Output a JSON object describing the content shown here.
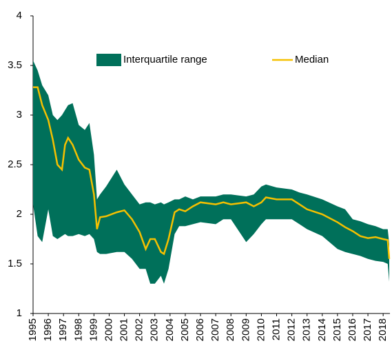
{
  "chart_data": {
    "type": "band-line",
    "x": [
      1995.0,
      1995.3,
      1995.6,
      1996.0,
      1996.3,
      1996.6,
      1996.9,
      1997.1,
      1997.3,
      1997.6,
      1998.0,
      1998.4,
      1998.7,
      1999.0,
      1999.2,
      1999.4,
      1999.8,
      2000.5,
      2001.0,
      2001.5,
      2002.0,
      2002.4,
      2002.7,
      2003.0,
      2003.4,
      2003.6,
      2003.9,
      2004.3,
      2004.6,
      2005.0,
      2005.5,
      2006.0,
      2007.0,
      2007.5,
      2008.0,
      2009.0,
      2009.5,
      2010.0,
      2010.3,
      2011.0,
      2012.0,
      2012.5,
      2013.0,
      2014.0,
      2015.0,
      2015.5,
      2016.0,
      2016.5,
      2017.0,
      2017.5,
      2018.0,
      2018.3,
      2018.4
    ],
    "series": [
      {
        "name": "Interquartile range",
        "color": "#00705a",
        "high": [
          3.55,
          3.45,
          3.3,
          3.2,
          3.0,
          2.95,
          3.0,
          3.05,
          3.1,
          3.12,
          2.9,
          2.85,
          2.92,
          2.6,
          2.15,
          2.2,
          2.28,
          2.45,
          2.3,
          2.2,
          2.1,
          2.12,
          2.12,
          2.1,
          2.12,
          2.1,
          2.12,
          2.15,
          2.15,
          2.18,
          2.15,
          2.18,
          2.18,
          2.2,
          2.2,
          2.18,
          2.2,
          2.28,
          2.3,
          2.27,
          2.25,
          2.22,
          2.2,
          2.15,
          2.08,
          2.05,
          1.95,
          1.93,
          1.9,
          1.88,
          1.85,
          1.85,
          1.7
        ],
        "low": [
          2.1,
          1.78,
          1.72,
          2.05,
          1.78,
          1.75,
          1.78,
          1.8,
          1.78,
          1.78,
          1.8,
          1.78,
          1.8,
          1.75,
          1.62,
          1.6,
          1.6,
          1.62,
          1.62,
          1.55,
          1.45,
          1.45,
          1.3,
          1.3,
          1.38,
          1.3,
          1.45,
          1.8,
          1.88,
          1.88,
          1.9,
          1.92,
          1.9,
          1.95,
          1.95,
          1.72,
          1.8,
          1.9,
          1.95,
          1.95,
          1.95,
          1.9,
          1.85,
          1.78,
          1.65,
          1.62,
          1.6,
          1.58,
          1.55,
          1.53,
          1.52,
          1.5,
          1.32
        ]
      },
      {
        "name": "Median",
        "color": "#f5c000",
        "values": [
          3.28,
          3.28,
          3.1,
          2.95,
          2.75,
          2.5,
          2.45,
          2.7,
          2.77,
          2.7,
          2.55,
          2.47,
          2.45,
          2.2,
          1.85,
          1.97,
          1.98,
          2.02,
          2.04,
          1.95,
          1.82,
          1.65,
          1.75,
          1.75,
          1.62,
          1.6,
          1.75,
          2.02,
          2.05,
          2.03,
          2.08,
          2.12,
          2.1,
          2.12,
          2.1,
          2.12,
          2.08,
          2.12,
          2.17,
          2.15,
          2.15,
          2.1,
          2.05,
          2.0,
          1.92,
          1.87,
          1.83,
          1.78,
          1.76,
          1.77,
          1.75,
          1.74,
          1.55
        ]
      }
    ],
    "xlim": [
      1995,
      2018.4
    ],
    "xticks": [
      1995,
      1996,
      1997,
      1998,
      1999,
      2000,
      2001,
      2002,
      2003,
      2004,
      2005,
      2006,
      2007,
      2008,
      2009,
      2010,
      2011,
      2012,
      2013,
      2014,
      2015,
      2016,
      2017,
      2018
    ],
    "ylim": [
      1,
      4
    ],
    "yticks": [
      1,
      1.5,
      2,
      2.5,
      3,
      3.5,
      4
    ],
    "grid": false
  }
}
